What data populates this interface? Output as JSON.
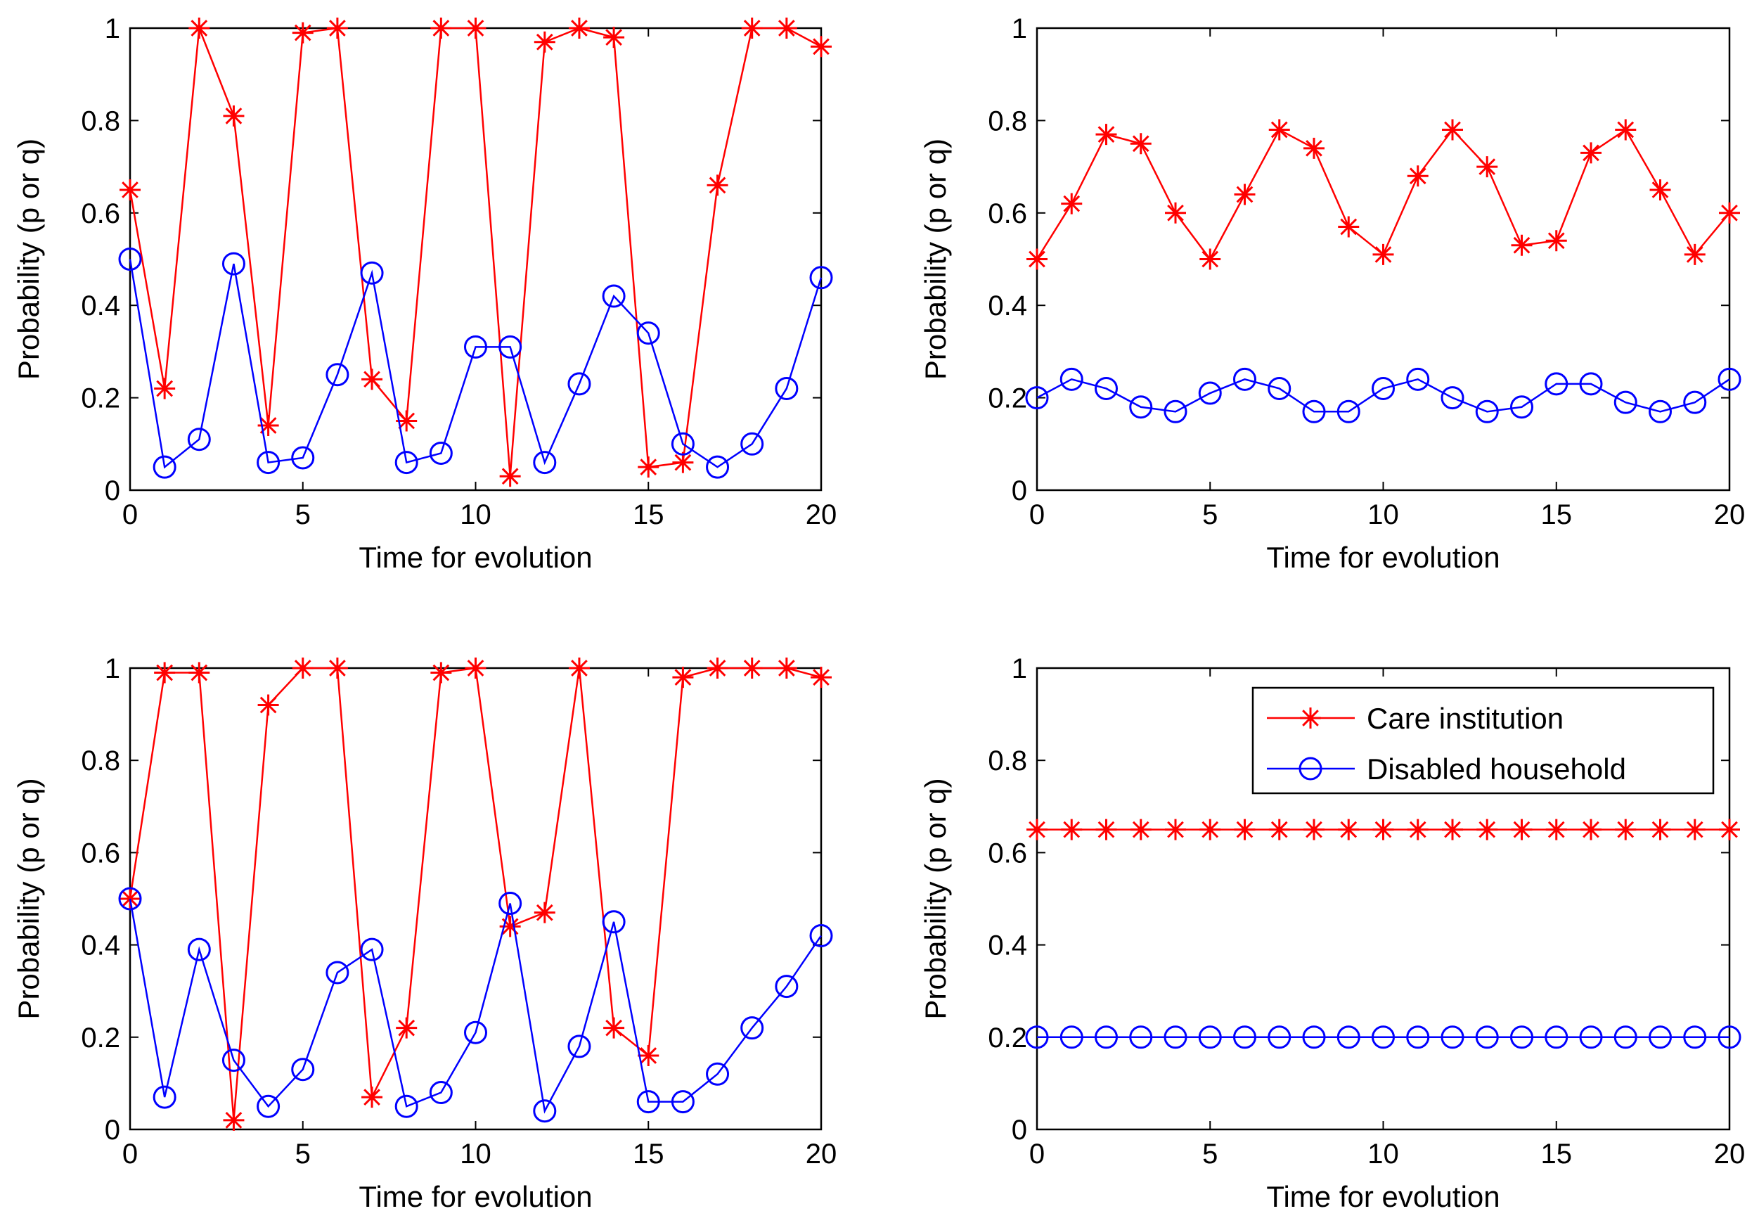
{
  "chart_data": [
    {
      "type": "line",
      "xlabel": "Time for evolution",
      "ylabel": "Probability (p or q)",
      "xlim": [
        0,
        20
      ],
      "ylim": [
        0,
        1
      ],
      "xticks": [
        0,
        5,
        10,
        15,
        20
      ],
      "yticks": [
        0,
        0.2,
        0.4,
        0.6,
        0.8,
        1
      ],
      "ytick_labels": [
        "0",
        "0.2",
        "0.4",
        "0.6",
        "0.8",
        "1"
      ],
      "grid": false,
      "x": [
        0,
        1,
        2,
        3,
        4,
        5,
        6,
        7,
        8,
        9,
        10,
        11,
        12,
        13,
        14,
        15,
        16,
        17,
        18,
        19,
        20
      ],
      "series": [
        {
          "name": "Care institution",
          "color": "#ff0000",
          "marker": "star",
          "values": [
            0.65,
            0.22,
            1.0,
            0.81,
            0.14,
            0.99,
            1.0,
            0.24,
            0.15,
            1.0,
            1.0,
            0.03,
            0.97,
            1.0,
            0.98,
            0.05,
            0.06,
            0.66,
            1.0,
            1.0,
            0.96
          ]
        },
        {
          "name": "Disabled household",
          "color": "#0000ff",
          "marker": "circle",
          "values": [
            0.5,
            0.05,
            0.11,
            0.49,
            0.06,
            0.07,
            0.25,
            0.47,
            0.06,
            0.08,
            0.31,
            0.31,
            0.06,
            0.23,
            0.42,
            0.34,
            0.1,
            0.05,
            0.1,
            0.22,
            0.46
          ]
        }
      ]
    },
    {
      "type": "line",
      "xlabel": "Time for evolution",
      "ylabel": "Probability (p or q)",
      "xlim": [
        0,
        20
      ],
      "ylim": [
        0,
        1
      ],
      "xticks": [
        0,
        5,
        10,
        15,
        20
      ],
      "yticks": [
        0,
        0.2,
        0.4,
        0.6,
        0.8,
        1
      ],
      "ytick_labels": [
        "0",
        "0.2",
        "0.4",
        "0.6",
        "0.8",
        "1"
      ],
      "grid": false,
      "x": [
        0,
        1,
        2,
        3,
        4,
        5,
        6,
        7,
        8,
        9,
        10,
        11,
        12,
        13,
        14,
        15,
        16,
        17,
        18,
        19,
        20
      ],
      "series": [
        {
          "name": "Care institution",
          "color": "#ff0000",
          "marker": "star",
          "values": [
            0.5,
            0.62,
            0.77,
            0.75,
            0.6,
            0.5,
            0.64,
            0.78,
            0.74,
            0.57,
            0.51,
            0.68,
            0.78,
            0.7,
            0.53,
            0.54,
            0.73,
            0.78,
            0.65,
            0.51,
            0.6
          ]
        },
        {
          "name": "Disabled household",
          "color": "#0000ff",
          "marker": "circle",
          "values": [
            0.2,
            0.24,
            0.22,
            0.18,
            0.17,
            0.21,
            0.24,
            0.22,
            0.17,
            0.17,
            0.22,
            0.24,
            0.2,
            0.17,
            0.18,
            0.23,
            0.23,
            0.19,
            0.17,
            0.19,
            0.24
          ]
        }
      ]
    },
    {
      "type": "line",
      "xlabel": "Time for evolution",
      "ylabel": "Probability (p or q)",
      "xlim": [
        0,
        20
      ],
      "ylim": [
        0,
        1
      ],
      "xticks": [
        0,
        5,
        10,
        15,
        20
      ],
      "yticks": [
        0,
        0.2,
        0.4,
        0.6,
        0.8,
        1
      ],
      "ytick_labels": [
        "0",
        "0.2",
        "0.4",
        "0.6",
        "0.8",
        "1"
      ],
      "grid": false,
      "x": [
        0,
        1,
        2,
        3,
        4,
        5,
        6,
        7,
        8,
        9,
        10,
        11,
        12,
        13,
        14,
        15,
        16,
        17,
        18,
        19,
        20
      ],
      "series": [
        {
          "name": "Care institution",
          "color": "#ff0000",
          "marker": "star",
          "values": [
            0.5,
            0.99,
            0.99,
            0.02,
            0.92,
            1.0,
            1.0,
            0.07,
            0.22,
            0.99,
            1.0,
            0.44,
            0.47,
            1.0,
            0.22,
            0.16,
            0.98,
            1.0,
            1.0,
            1.0,
            0.98
          ]
        },
        {
          "name": "Disabled household",
          "color": "#0000ff",
          "marker": "circle",
          "values": [
            0.5,
            0.07,
            0.39,
            0.15,
            0.05,
            0.13,
            0.34,
            0.39,
            0.05,
            0.08,
            0.21,
            0.49,
            0.04,
            0.18,
            0.45,
            0.06,
            0.06,
            0.12,
            0.22,
            0.31,
            0.42
          ]
        }
      ]
    },
    {
      "type": "line",
      "xlabel": "Time for evolution",
      "ylabel": "Probability (p or q)",
      "xlim": [
        0,
        20
      ],
      "ylim": [
        0,
        1
      ],
      "xticks": [
        0,
        5,
        10,
        15,
        20
      ],
      "yticks": [
        0,
        0.2,
        0.4,
        0.6,
        0.8,
        1
      ],
      "ytick_labels": [
        "0",
        "0.2",
        "0.4",
        "0.6",
        "0.8",
        "1"
      ],
      "grid": false,
      "legend": "top-right",
      "x": [
        0,
        1,
        2,
        3,
        4,
        5,
        6,
        7,
        8,
        9,
        10,
        11,
        12,
        13,
        14,
        15,
        16,
        17,
        18,
        19,
        20
      ],
      "series": [
        {
          "name": "Care institution",
          "color": "#ff0000",
          "marker": "star",
          "values": [
            0.65,
            0.65,
            0.65,
            0.65,
            0.65,
            0.65,
            0.65,
            0.65,
            0.65,
            0.65,
            0.65,
            0.65,
            0.65,
            0.65,
            0.65,
            0.65,
            0.65,
            0.65,
            0.65,
            0.65,
            0.65
          ]
        },
        {
          "name": "Disabled household",
          "color": "#0000ff",
          "marker": "circle",
          "values": [
            0.2,
            0.2,
            0.2,
            0.2,
            0.2,
            0.2,
            0.2,
            0.2,
            0.2,
            0.2,
            0.2,
            0.2,
            0.2,
            0.2,
            0.2,
            0.2,
            0.2,
            0.2,
            0.2,
            0.2,
            0.2
          ]
        }
      ]
    }
  ]
}
